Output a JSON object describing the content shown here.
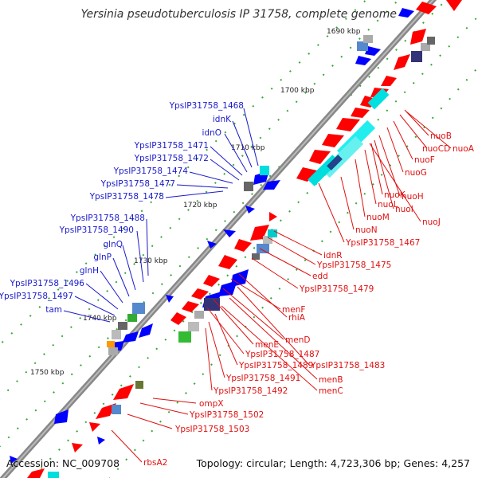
{
  "title": "Yersinia pseudotuberculosis IP 31758, complete genome",
  "accession": "Accession: NC_009708",
  "summary": "Topology: circular; Length: 4,723,306 bp; Genes: 4,257",
  "kbp_ticks": [
    "1690 kbp",
    "1700 kbp",
    "1710 kbp",
    "1720 kbp",
    "1730 kbp",
    "1740 kbp",
    "1750 kbp"
  ],
  "left_labels": [
    "YpsIP31758_1468",
    "idnK",
    "idnO",
    "YpsIP31758_1471",
    "YpsIP31758_1472",
    "YpsIP31758_1474",
    "YpsIP31758_1477",
    "YpsIP31758_1478",
    "YpsIP31758_1488",
    "YpsIP31758_1490",
    "glnQ",
    "glnP",
    "glnH",
    "YpsIP31758_1496",
    "YpsIP31758_1497",
    "tam"
  ],
  "right_labels": [
    "nuoB",
    "nuoCD",
    "nuoA",
    "nuoF",
    "nuoG",
    "nuoK",
    "nuoH",
    "nuoL",
    "nuoI",
    "nuoM",
    "nuoJ",
    "nuoN",
    "YpsIP31758_1467",
    "idnR",
    "YpsIP31758_1475",
    "edd",
    "YpsIP31758_1479",
    "menF",
    "rhiA",
    "menD",
    "menE",
    "YpsIP31758_1487",
    "YpsIP31758_1483",
    "YpsIP31758_1489",
    "YpsIP31758_1491",
    "menB",
    "menC",
    "YpsIP31758_1492",
    "ompX",
    "YpsIP31758_1502",
    "YpsIP31758_1503",
    "rbsA2"
  ],
  "colors": {
    "forward": "#ff0000",
    "reverse": "#0000ff",
    "rna": "#00e0e0",
    "backbone": "#888888",
    "label_left": "#1a1acc",
    "label_right": "#e01010",
    "dots": "#33aa33"
  }
}
